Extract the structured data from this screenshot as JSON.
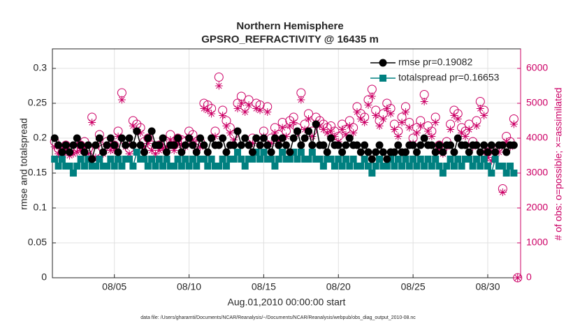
{
  "chart_data": {
    "type": "line",
    "title": "Northern Hemisphere",
    "subtitle": "GPSRO_REFRACTIVITY @ 16435 m",
    "xlabel": "Aug.01,2010 00:00:00 start",
    "ylabel": "rmse and totalspread",
    "y2label": "# of obs: o=possible; ×=assimilated",
    "footnote": "data file: /Users/gharamti/Documents/NCAR/Reanalysis/~/Documents/NCAR/Reanalysis/webpub/obs_diag_output_2010-08.nc",
    "xlim": [
      0.85,
      32.2
    ],
    "xticks": [
      {
        "value": 5,
        "label": "08/05"
      },
      {
        "value": 10,
        "label": "08/10"
      },
      {
        "value": 15,
        "label": "08/15"
      },
      {
        "value": 20,
        "label": "08/20"
      },
      {
        "value": 25,
        "label": "08/25"
      },
      {
        "value": 30,
        "label": "08/30"
      }
    ],
    "ylim": [
      0,
      0.328
    ],
    "yticks": [
      0,
      0.05,
      0.1,
      0.15,
      0.2,
      0.25,
      0.3
    ],
    "y2lim": [
      0,
      6560
    ],
    "y2ticks": [
      0,
      1000,
      2000,
      3000,
      4000,
      5000,
      6000
    ],
    "y2color": "#cc0066",
    "grid": true,
    "legend": "upper right",
    "x": [
      1,
      1.25,
      1.5,
      1.75,
      2,
      2.25,
      2.5,
      2.75,
      3,
      3.25,
      3.5,
      3.75,
      4,
      4.25,
      4.5,
      4.75,
      5,
      5.25,
      5.5,
      5.75,
      6,
      6.25,
      6.5,
      6.75,
      7,
      7.25,
      7.5,
      7.75,
      8,
      8.25,
      8.5,
      8.75,
      9,
      9.25,
      9.5,
      9.75,
      10,
      10.25,
      10.5,
      10.75,
      11,
      11.25,
      11.5,
      11.75,
      12,
      12.25,
      12.5,
      12.75,
      13,
      13.25,
      13.5,
      13.75,
      14,
      14.25,
      14.5,
      14.75,
      15,
      15.25,
      15.5,
      15.75,
      16,
      16.25,
      16.5,
      16.75,
      17,
      17.25,
      17.5,
      17.75,
      18,
      18.25,
      18.5,
      18.75,
      19,
      19.25,
      19.5,
      19.75,
      20,
      20.25,
      20.5,
      20.75,
      21,
      21.25,
      21.5,
      21.75,
      22,
      22.25,
      22.5,
      22.75,
      23,
      23.25,
      23.5,
      23.75,
      24,
      24.25,
      24.5,
      24.75,
      25,
      25.25,
      25.5,
      25.75,
      26,
      26.25,
      26.5,
      26.75,
      27,
      27.25,
      27.5,
      27.75,
      28,
      28.25,
      28.5,
      28.75,
      29,
      29.25,
      29.5,
      29.75,
      30,
      30.25,
      30.5,
      30.75,
      31,
      31.25,
      31.5,
      31.75,
      32
    ],
    "series": [
      {
        "name": "rmse pr=0.19082",
        "color": "#000000",
        "marker": "circle-filled",
        "line": true,
        "values": [
          0.2,
          0.19,
          0.18,
          0.19,
          0.18,
          0.19,
          0.2,
          0.19,
          0.18,
          0.19,
          0.17,
          0.19,
          0.2,
          0.18,
          0.19,
          0.2,
          0.19,
          0.18,
          0.2,
          0.19,
          0.2,
          0.19,
          0.21,
          0.19,
          0.18,
          0.2,
          0.21,
          0.19,
          0.19,
          0.2,
          0.18,
          0.19,
          0.19,
          0.2,
          0.18,
          0.19,
          0.2,
          0.19,
          0.18,
          0.2,
          0.19,
          0.18,
          0.2,
          0.19,
          0.19,
          0.2,
          0.18,
          0.19,
          0.19,
          0.21,
          0.19,
          0.2,
          0.19,
          0.18,
          0.2,
          0.19,
          0.2,
          0.19,
          0.18,
          0.2,
          0.19,
          0.2,
          0.19,
          0.18,
          0.2,
          0.21,
          0.19,
          0.2,
          0.21,
          0.19,
          0.22,
          0.19,
          0.19,
          0.18,
          0.2,
          0.19,
          0.19,
          0.18,
          0.19,
          0.2,
          0.19,
          0.19,
          0.18,
          0.19,
          0.18,
          0.17,
          0.18,
          0.19,
          0.18,
          0.17,
          0.18,
          0.18,
          0.19,
          0.18,
          0.18,
          0.19,
          0.19,
          0.18,
          0.19,
          0.2,
          0.19,
          0.19,
          0.18,
          0.19,
          0.18,
          0.19,
          0.19,
          0.18,
          0.2,
          0.19,
          0.19,
          0.18,
          0.19,
          0.19,
          0.18,
          0.19,
          0.18,
          0.19,
          0.18,
          0.19,
          0.19,
          0.18,
          0.19,
          0.19,
          null
        ]
      },
      {
        "name": "totalspread pr=0.16653",
        "color": "#008080",
        "marker": "square-filled",
        "line": true,
        "values": [
          0.17,
          0.16,
          0.17,
          0.16,
          0.16,
          0.15,
          0.16,
          0.17,
          0.16,
          0.17,
          0.16,
          0.16,
          0.17,
          0.16,
          0.16,
          0.17,
          0.16,
          0.17,
          0.16,
          0.17,
          0.17,
          0.16,
          0.18,
          0.17,
          0.17,
          0.16,
          0.17,
          0.16,
          0.17,
          0.16,
          0.17,
          0.16,
          0.16,
          0.17,
          0.16,
          0.17,
          0.16,
          0.17,
          0.16,
          0.17,
          0.17,
          0.16,
          0.17,
          0.16,
          0.16,
          0.17,
          0.16,
          0.17,
          0.17,
          0.18,
          0.17,
          0.16,
          0.17,
          0.17,
          0.18,
          0.17,
          0.18,
          0.17,
          0.17,
          0.16,
          0.17,
          0.18,
          0.17,
          0.17,
          0.18,
          0.17,
          0.18,
          0.17,
          0.17,
          0.18,
          0.17,
          0.17,
          0.16,
          0.17,
          0.17,
          0.16,
          0.17,
          0.16,
          0.17,
          0.16,
          0.17,
          0.16,
          0.16,
          0.17,
          0.16,
          0.15,
          0.16,
          0.17,
          0.16,
          0.16,
          0.17,
          0.16,
          0.17,
          0.16,
          0.17,
          0.16,
          0.17,
          0.16,
          0.17,
          0.16,
          0.17,
          0.16,
          0.17,
          0.16,
          0.15,
          0.16,
          0.17,
          0.16,
          0.17,
          0.16,
          0.17,
          0.17,
          0.16,
          0.17,
          0.16,
          0.17,
          0.16,
          0.15,
          0.17,
          0.16,
          0.16,
          0.15,
          0.16,
          0.15,
          null
        ]
      },
      {
        "color": "#cc0066",
        "marker": "circle-open",
        "line": false,
        "axis": "y2",
        "values": [
          3900,
          3700,
          3600,
          3800,
          3650,
          3700,
          3750,
          3800,
          3900,
          3700,
          4600,
          3600,
          4100,
          3700,
          3900,
          3800,
          3800,
          4200,
          5300,
          3900,
          3700,
          4500,
          4400,
          4300,
          3900,
          4000,
          3800,
          3700,
          3800,
          3850,
          3900,
          4100,
          3800,
          4000,
          3950,
          3900,
          4200,
          4100,
          3800,
          3900,
          5000,
          4950,
          4850,
          4200,
          5750,
          4800,
          4500,
          4300,
          4100,
          5000,
          5200,
          4900,
          5100,
          4000,
          5000,
          4950,
          4200,
          4900,
          4000,
          4300,
          4100,
          4450,
          4200,
          4500,
          4600,
          4300,
          5300,
          4400,
          4700,
          4200,
          4600,
          4500,
          4400,
          4300,
          4350,
          4200,
          4050,
          4400,
          4250,
          4500,
          4300,
          4900,
          4700,
          4600,
          5100,
          5400,
          4800,
          4500,
          4700,
          5000,
          4850,
          4400,
          4200,
          4600,
          4900,
          4450,
          4000,
          4300,
          4500,
          5250,
          4350,
          4200,
          4600,
          3800,
          3700,
          3900,
          4400,
          4800,
          4700,
          4300,
          4200,
          4400,
          3900,
          4500,
          5050,
          4800,
          3600,
          3500,
          3700,
          3750,
          2550,
          4050,
          3900,
          4550,
          0
        ]
      },
      {
        "color": "#cc0066",
        "marker": "asterisk",
        "line": false,
        "axis": "y2",
        "values": [
          3750,
          3550,
          3450,
          3650,
          3500,
          3550,
          3600,
          3650,
          3750,
          3550,
          4450,
          3450,
          3950,
          3550,
          3750,
          3650,
          3650,
          4050,
          5100,
          3750,
          3550,
          4350,
          4250,
          4150,
          3750,
          3850,
          3650,
          3550,
          3650,
          3700,
          3750,
          3950,
          3650,
          3850,
          3800,
          3750,
          4050,
          3950,
          3650,
          3750,
          4850,
          4800,
          4700,
          4050,
          5500,
          4650,
          4350,
          4150,
          3950,
          4850,
          5000,
          4750,
          4950,
          3850,
          4850,
          4800,
          4050,
          4750,
          3850,
          4150,
          3950,
          4300,
          4050,
          4350,
          4450,
          4150,
          5100,
          4250,
          4550,
          4050,
          4450,
          4350,
          4250,
          4150,
          4200,
          4050,
          3900,
          4250,
          4100,
          4350,
          4150,
          4750,
          4550,
          4450,
          4950,
          5200,
          4650,
          4350,
          4550,
          4850,
          4700,
          4250,
          4050,
          4450,
          4750,
          4300,
          3850,
          4150,
          4350,
          5050,
          4200,
          4050,
          4450,
          3650,
          3550,
          3750,
          4250,
          4650,
          4550,
          4150,
          4050,
          4250,
          3750,
          4350,
          4850,
          4650,
          3450,
          3350,
          3550,
          3600,
          2450,
          3900,
          3750,
          4400,
          0
        ]
      }
    ]
  }
}
